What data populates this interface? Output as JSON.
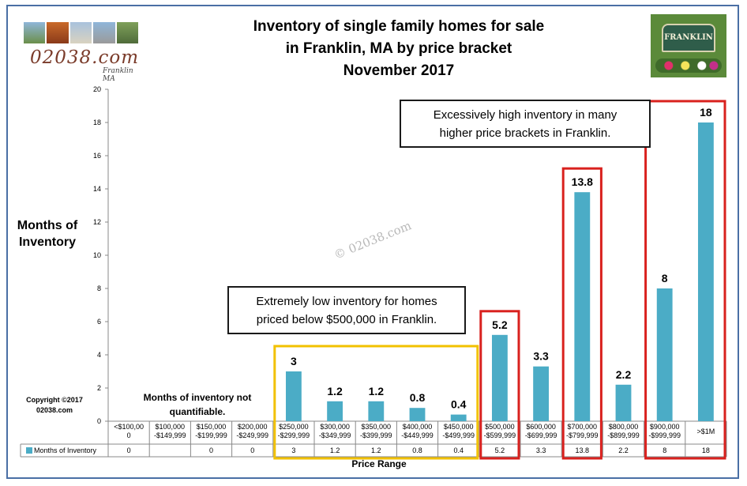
{
  "chart_data": {
    "type": "bar",
    "title": [
      "Inventory of single family homes for sale",
      "in Franklin, MA by price bracket",
      "November 2017"
    ],
    "ylabel": "Months of Inventory",
    "xlabel": "Price Range",
    "ylim": [
      0,
      20
    ],
    "yticks": [
      "0",
      "2",
      "4",
      "6",
      "8",
      "10",
      "12",
      "14",
      "16",
      "18",
      "20"
    ],
    "grid": false,
    "legend": "bottom-left (data table)",
    "categories": [
      [
        "<$100,00",
        "0"
      ],
      [
        "$100,000",
        "-$149,999"
      ],
      [
        "$150,000",
        "-$199,999"
      ],
      [
        "$200,000",
        "-$249,999"
      ],
      [
        "$250,000",
        "-$299,999"
      ],
      [
        "$300,000",
        "-$349,999"
      ],
      [
        "$350,000",
        "-$399,999"
      ],
      [
        "$400,000",
        "-$449,999"
      ],
      [
        "$450,000",
        "-$499,999"
      ],
      [
        "$500,000",
        "-$599,999"
      ],
      [
        "$600,000",
        "-$699,999"
      ],
      [
        "$700,000",
        "-$799,999"
      ],
      [
        "$800,000",
        "-$899,999"
      ],
      [
        "$900,000",
        "-$999,999"
      ],
      [
        ">$1M"
      ]
    ],
    "series": [
      {
        "name": "Months of Inventory",
        "values": [
          0,
          null,
          0,
          0,
          3,
          1.2,
          1.2,
          0.8,
          0.4,
          5.2,
          3.3,
          13.8,
          2.2,
          8,
          18
        ],
        "labels": [
          null,
          null,
          null,
          null,
          "3",
          "1.2",
          "1.2",
          "0.8",
          "0.4",
          "5.2",
          "3.3",
          "13.8",
          "2.2",
          "8",
          "18"
        ],
        "table": [
          "0",
          "",
          "0",
          "0",
          "3",
          "1.2",
          "1.2",
          "0.8",
          "0.4",
          "5.2",
          "3.3",
          "13.8",
          "2.2",
          "8",
          "18"
        ]
      }
    ],
    "bar_color": "#4bacc6",
    "highlights": [
      {
        "from": 4,
        "to": 8,
        "color": "#f2c100"
      },
      {
        "from": 9,
        "to": 9,
        "color": "#d9211e"
      },
      {
        "from": 11,
        "to": 11,
        "color": "#d9211e"
      },
      {
        "from": 13,
        "to": 14,
        "color": "#d9211e"
      }
    ]
  },
  "annotations": {
    "high_inventory": [
      "Excessively  high inventory in many",
      "higher price brackets in Franklin."
    ],
    "low_inventory": [
      "Extremely low inventory for homes",
      "priced below $500,000 in Franklin."
    ],
    "not_quantifiable": [
      "Months of inventory not",
      "quantifiable."
    ],
    "copyright": [
      "Copyright ©2017",
      "02038.com"
    ],
    "watermark": "© 02038.com"
  },
  "logo": {
    "text": "02038.com",
    "sub": "Franklin MA"
  },
  "sign": {
    "text": "FRANKLIN"
  },
  "colors": {
    "frame": "#4a6fa5",
    "bar": "#4bacc6",
    "yellow_box": "#f2c100",
    "red_box": "#d9211e"
  }
}
